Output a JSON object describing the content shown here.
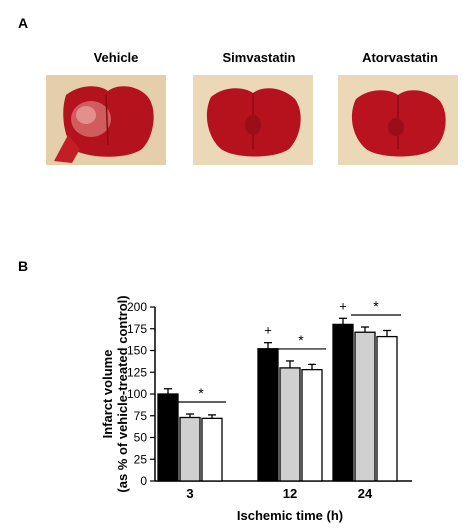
{
  "panel_a": {
    "letter": "A",
    "images": [
      {
        "label": "Vehicle",
        "icon": "brain-section-vehicle-image"
      },
      {
        "label": "Simvastatin",
        "icon": "brain-section-simvastatin-image"
      },
      {
        "label": "Atorvastatin",
        "icon": "brain-section-atorvastatin-image"
      }
    ]
  },
  "panel_b": {
    "letter": "B"
  },
  "chart_data": {
    "type": "bar",
    "categories": [
      "3",
      "12",
      "24"
    ],
    "series": [
      {
        "values": [
          100,
          152,
          180
        ],
        "errors": [
          6,
          7,
          7
        ],
        "color": "#000000"
      },
      {
        "values": [
          73,
          130,
          171
        ],
        "errors": [
          4,
          8,
          6
        ],
        "color": "#d0d0d0"
      },
      {
        "values": [
          72,
          128,
          166
        ],
        "errors": [
          4,
          6,
          7
        ],
        "color": "#ffffff"
      }
    ],
    "xlabel": "Ischemic time (h)",
    "ylabel_line1": "Infarct volume",
    "ylabel_line2": "(as % of vehicle-treated control)",
    "ylim": [
      0,
      200
    ],
    "yticks": [
      0,
      25,
      50,
      75,
      100,
      125,
      150,
      175,
      200
    ],
    "annotations": {
      "plus": [
        "",
        "+",
        "+"
      ],
      "star": [
        "*",
        "*",
        "*"
      ]
    },
    "grid": false
  }
}
